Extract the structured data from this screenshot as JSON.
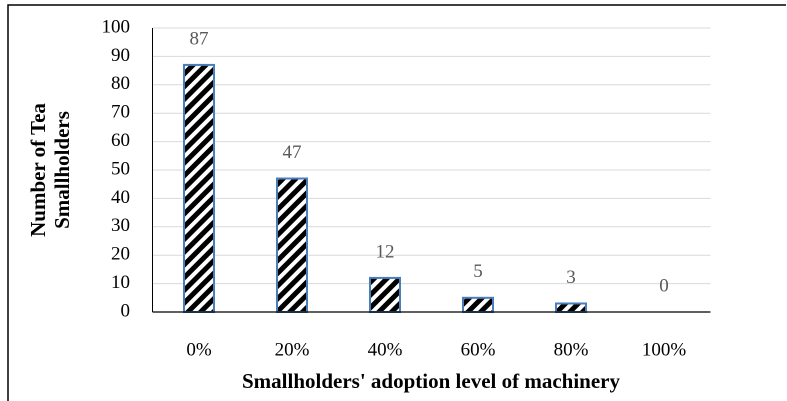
{
  "chart_data": {
    "type": "bar",
    "xlabel": "Smallholders' adoption level of machinery",
    "ylabel": [
      "Number of Tea",
      "Smallholders"
    ],
    "categories": [
      "0%",
      "20%",
      "40%",
      "60%",
      "80%",
      "100%"
    ],
    "values": [
      87,
      47,
      12,
      5,
      3,
      0
    ],
    "color": "#4a7ebb",
    "ylim": [
      0,
      100
    ],
    "yticks": [
      0,
      10,
      20,
      30,
      40,
      50,
      60,
      70,
      80,
      90,
      100
    ],
    "grid": true
  }
}
